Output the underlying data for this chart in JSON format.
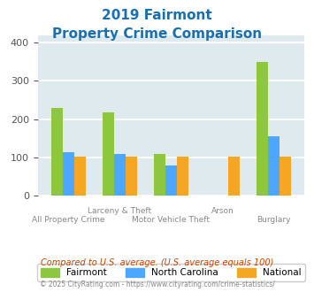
{
  "title_line1": "2019 Fairmont",
  "title_line2": "Property Crime Comparison",
  "title_color": "#1a6faf",
  "fairmont": [
    230,
    218,
    108,
    0,
    350
  ],
  "north_carolina": [
    113,
    110,
    78,
    0,
    155
  ],
  "national": [
    101,
    101,
    101,
    101,
    101
  ],
  "colors": {
    "fairmont": "#8dc63f",
    "north_carolina": "#4da6ff",
    "national": "#f5a623"
  },
  "ylim": [
    0,
    420
  ],
  "yticks": [
    0,
    100,
    200,
    300,
    400
  ],
  "background_color": "#deeaee",
  "grid_color": "#ffffff",
  "subtitle_text": "Compared to U.S. average. (U.S. average equals 100)",
  "subtitle_color": "#cc4400",
  "footer_text": "© 2025 CityRating.com - https://www.cityrating.com/crime-statistics/",
  "footer_color": "#888888",
  "legend_labels": [
    "Fairmont",
    "North Carolina",
    "National"
  ],
  "top_labels": [
    [
      1,
      "Larceny & Theft"
    ],
    [
      3,
      "Arson"
    ]
  ],
  "bot_labels": [
    [
      0,
      "All Property Crime"
    ],
    [
      2,
      "Motor Vehicle Theft"
    ],
    [
      4,
      "Burglary"
    ]
  ]
}
